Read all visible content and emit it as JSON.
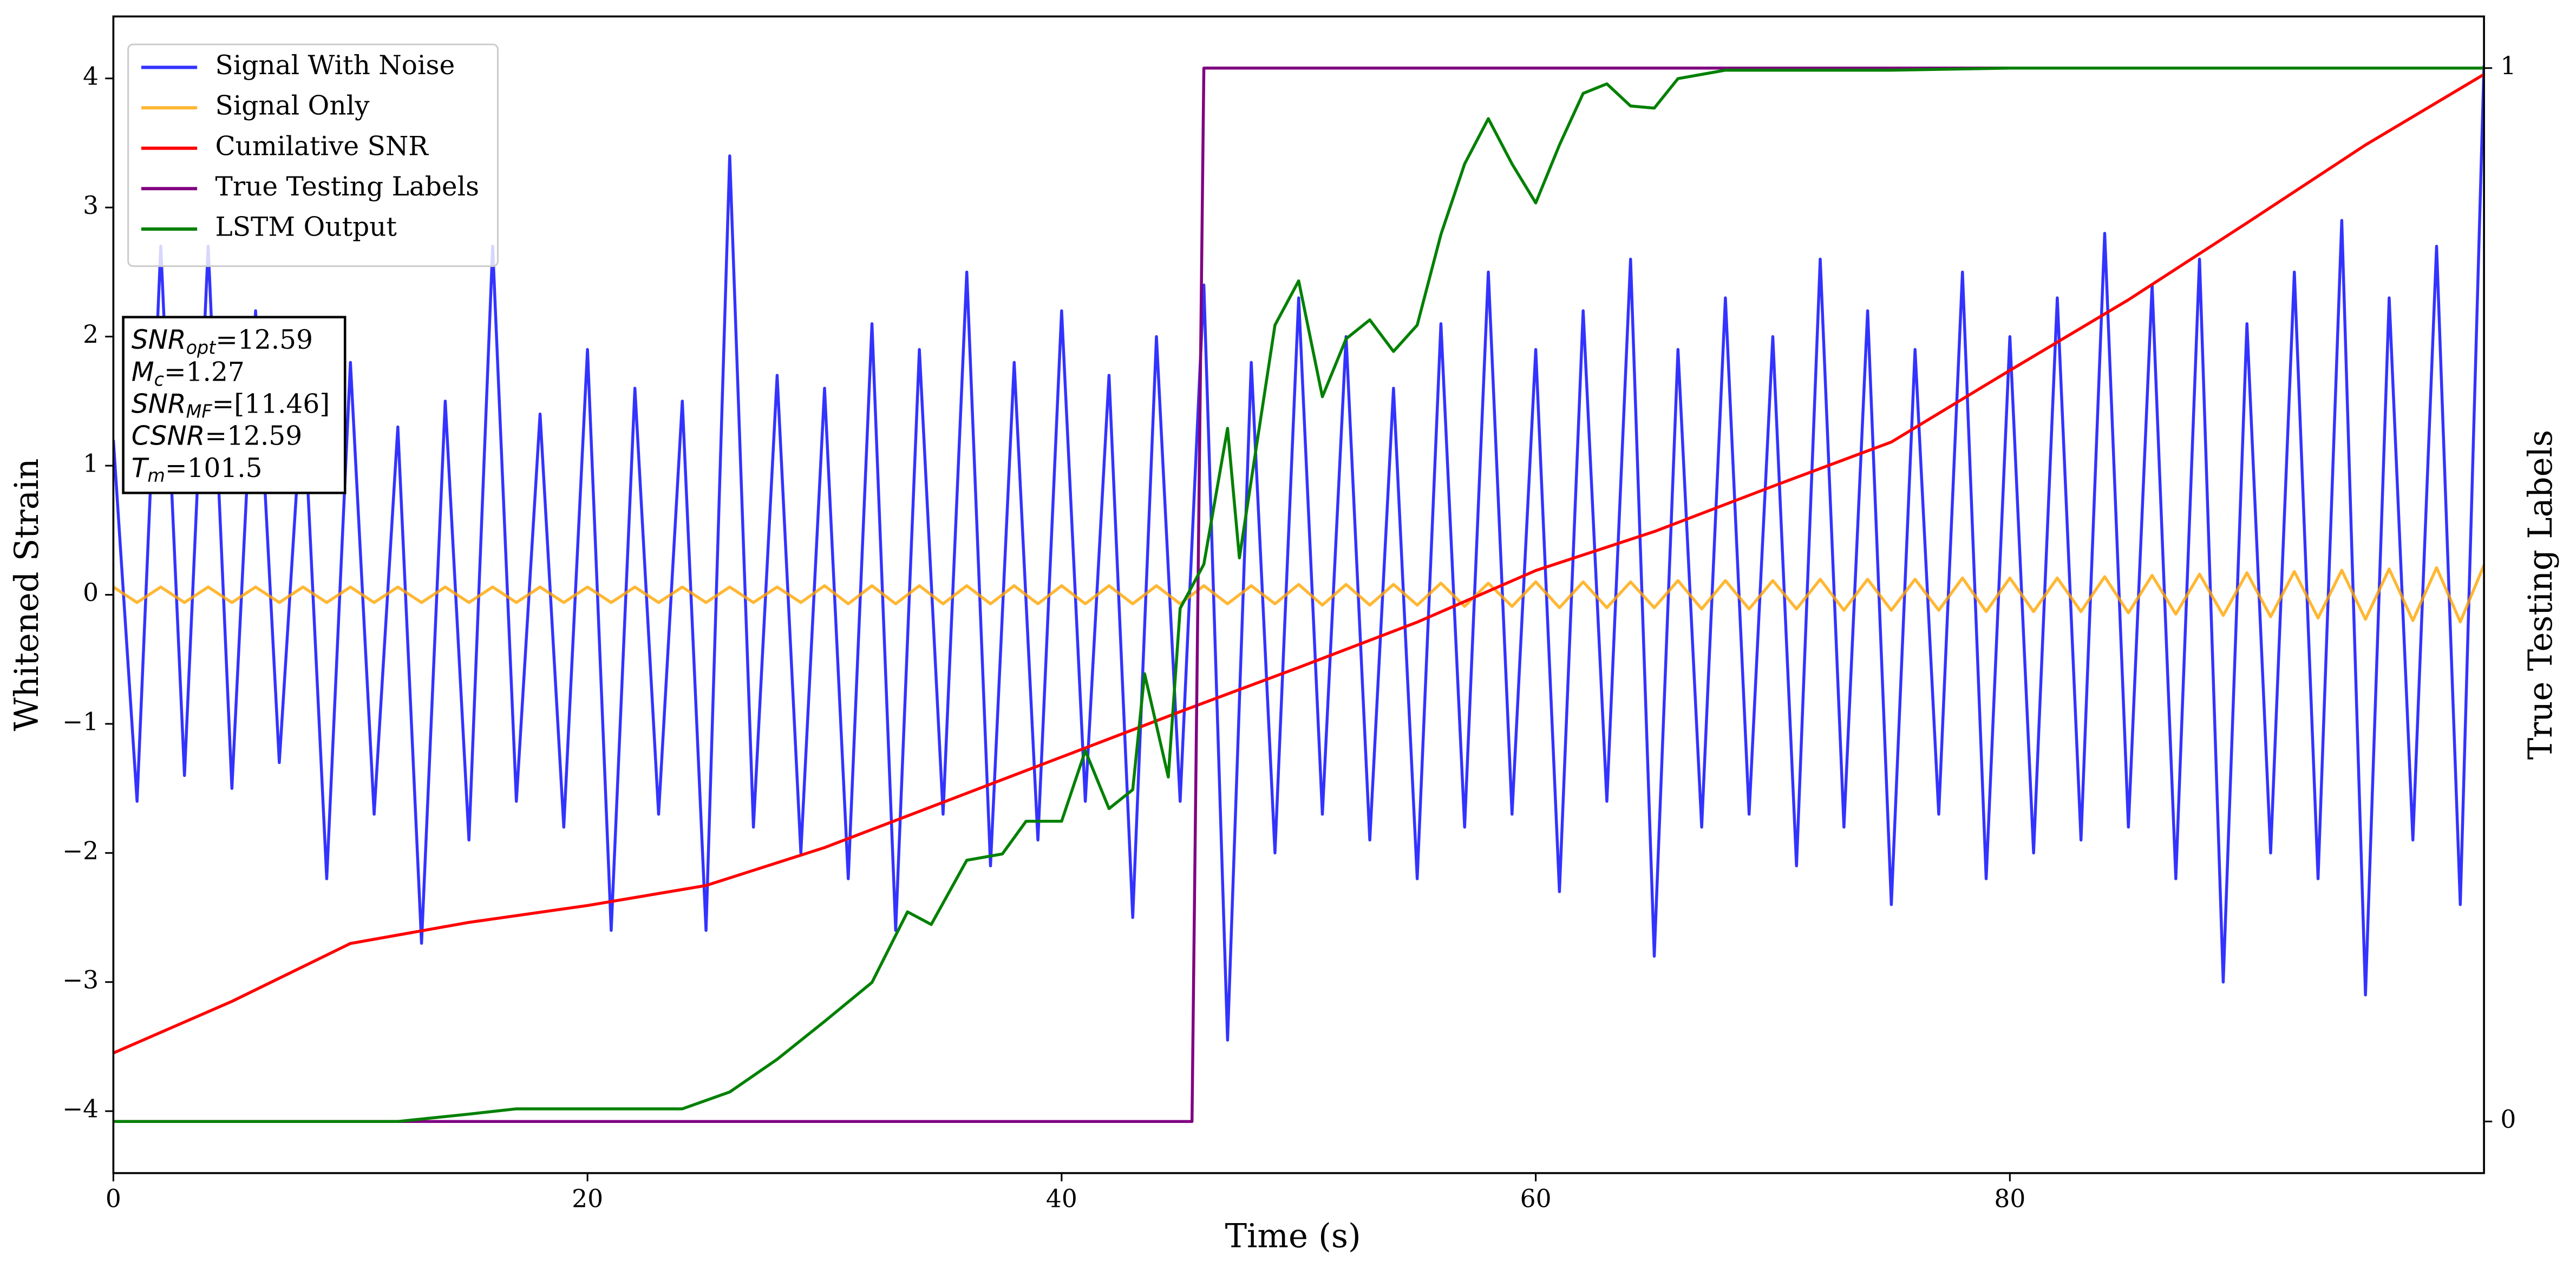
{
  "chart_data": {
    "type": "line",
    "xlabel": "Time (s)",
    "ylabel": "Whitened Strain",
    "y2label": "True Testing Labels",
    "xlim": [
      0,
      100
    ],
    "ylim": [
      -4.48,
      4.48
    ],
    "y2lim": [
      -0.049,
      1.049
    ],
    "xticks": [
      0,
      20,
      40,
      60,
      80
    ],
    "yticks": [
      {
        "value": -4,
        "label": "−4"
      },
      {
        "value": -3,
        "label": "−3"
      },
      {
        "value": -2,
        "label": "−2"
      },
      {
        "value": -1,
        "label": "−1"
      },
      0,
      1,
      2,
      3,
      4
    ],
    "y2ticks": [
      0,
      1
    ],
    "legend": "upper left",
    "alpha": 0.8,
    "x": [
      0,
      1,
      2,
      3,
      4,
      5,
      6,
      7,
      8,
      9,
      10,
      11,
      12,
      13,
      14,
      15,
      16,
      17,
      18,
      19,
      20,
      21,
      22,
      23,
      24,
      25,
      26,
      27,
      28,
      29,
      30,
      31,
      32,
      33,
      34,
      35,
      36,
      37,
      38,
      39,
      40,
      41,
      42,
      43,
      44,
      45,
      46,
      47,
      48,
      49,
      50,
      51,
      52,
      53,
      54,
      55,
      56,
      57,
      58,
      59,
      60,
      61,
      62,
      63,
      64,
      65,
      66,
      67,
      68,
      69,
      70,
      71,
      72,
      73,
      74,
      75,
      76,
      77,
      78,
      79,
      80,
      81,
      82,
      83,
      84,
      85,
      86,
      87,
      88,
      89,
      90,
      91,
      92,
      93,
      94,
      95,
      96,
      97,
      98,
      99,
      100
    ],
    "series": [
      {
        "name": "Signal With Noise",
        "color": "#0000ff",
        "values": [
          1.2,
          -1.6,
          2.7,
          -1.4,
          2.7,
          -1.5,
          2.2,
          -1.3,
          1.6,
          -2.2,
          1.8,
          -1.7,
          1.3,
          -2.7,
          1.5,
          -1.9,
          2.7,
          -1.6,
          1.4,
          -1.8,
          1.9,
          -2.6,
          1.6,
          -1.7,
          1.5,
          -2.6,
          3.4,
          -1.8,
          1.7,
          -2.0,
          1.6,
          -2.2,
          2.1,
          -2.6,
          1.9,
          -1.7,
          2.5,
          -2.1,
          1.8,
          -1.9,
          2.2,
          -1.6,
          1.7,
          -2.5,
          2.0,
          -1.6,
          2.4,
          -3.45,
          1.8,
          -2.0,
          2.3,
          -1.7,
          2.0,
          -1.9,
          1.6,
          -2.2,
          2.1,
          -1.8,
          2.5,
          -1.7,
          1.9,
          -2.3,
          2.2,
          -1.6,
          2.6,
          -2.8,
          1.9,
          -1.8,
          2.3,
          -1.7,
          2.0,
          -2.1,
          2.6,
          -1.8,
          2.2,
          -2.4,
          1.9,
          -1.7,
          2.5,
          -2.2,
          2.0,
          -2.0,
          2.3,
          -1.9,
          2.8,
          -1.8,
          2.4,
          -2.2,
          2.6,
          -3.0,
          2.1,
          -2.0,
          2.5,
          -2.2,
          2.9,
          -3.1,
          2.3,
          -1.9,
          2.7,
          -2.4,
          4.1
        ]
      },
      {
        "name": "Signal Only",
        "color": "#ffa500",
        "values": [
          0.06,
          -0.06,
          0.06,
          -0.06,
          0.06,
          -0.06,
          0.06,
          -0.06,
          0.06,
          -0.06,
          0.06,
          -0.06,
          0.06,
          -0.06,
          0.06,
          -0.06,
          0.06,
          -0.06,
          0.06,
          -0.06,
          0.06,
          -0.06,
          0.06,
          -0.06,
          0.06,
          -0.06,
          0.06,
          -0.06,
          0.06,
          -0.06,
          0.07,
          -0.07,
          0.07,
          -0.07,
          0.07,
          -0.07,
          0.07,
          -0.07,
          0.07,
          -0.07,
          0.07,
          -0.07,
          0.07,
          -0.07,
          0.07,
          -0.07,
          0.07,
          -0.07,
          0.07,
          -0.07,
          0.08,
          -0.08,
          0.08,
          -0.08,
          0.08,
          -0.08,
          0.09,
          -0.09,
          0.09,
          -0.09,
          0.1,
          -0.1,
          0.1,
          -0.1,
          0.1,
          -0.1,
          0.11,
          -0.11,
          0.11,
          -0.11,
          0.11,
          -0.11,
          0.12,
          -0.12,
          0.12,
          -0.12,
          0.12,
          -0.12,
          0.13,
          -0.13,
          0.13,
          -0.13,
          0.13,
          -0.13,
          0.14,
          -0.14,
          0.15,
          -0.15,
          0.16,
          -0.16,
          0.17,
          -0.17,
          0.18,
          -0.18,
          0.19,
          -0.19,
          0.2,
          -0.2,
          0.21,
          -0.21,
          0.23
        ]
      },
      {
        "name": "Cumilative SNR",
        "color": "#ff0000",
        "axis": "y2",
        "x": [
          0,
          5,
          10,
          15,
          20,
          25,
          30,
          35,
          40,
          45,
          50,
          55,
          60,
          65,
          70,
          75,
          80,
          85,
          90,
          95,
          100
        ],
        "values": [
          0.065,
          0.114,
          0.169,
          0.189,
          0.205,
          0.224,
          0.26,
          0.303,
          0.346,
          0.389,
          0.431,
          0.474,
          0.523,
          0.56,
          0.603,
          0.645,
          0.713,
          0.78,
          0.853,
          0.927,
          0.994
        ]
      },
      {
        "name": "True Testing Labels",
        "color": "#800080",
        "axis": "y2",
        "x": [
          0,
          45.5,
          46,
          100
        ],
        "values": [
          0,
          0,
          1,
          1
        ]
      },
      {
        "name": "LSTM Output",
        "color": "#008000",
        "axis": "y2",
        "x": [
          0,
          12,
          15,
          17,
          20,
          24,
          26,
          28,
          30,
          32,
          33.5,
          34.5,
          36,
          37.5,
          38.5,
          40,
          41,
          42,
          43,
          43.5,
          44.5,
          45,
          46,
          47,
          47.5,
          49,
          50,
          51,
          52,
          53,
          54,
          55,
          56,
          57,
          58,
          59,
          60,
          61,
          62,
          63,
          64,
          65,
          66,
          68,
          75,
          80,
          100
        ],
        "values": [
          0,
          0,
          0.007,
          0.012,
          0.012,
          0.012,
          0.028,
          0.059,
          0.095,
          0.132,
          0.199,
          0.187,
          0.248,
          0.254,
          0.285,
          0.285,
          0.352,
          0.297,
          0.315,
          0.425,
          0.327,
          0.487,
          0.529,
          0.658,
          0.535,
          0.756,
          0.798,
          0.688,
          0.743,
          0.761,
          0.731,
          0.756,
          0.842,
          0.909,
          0.952,
          0.909,
          0.872,
          0.927,
          0.976,
          0.985,
          0.964,
          0.962,
          0.99,
          0.998,
          0.998,
          1,
          1
        ]
      }
    ],
    "annotation": [
      {
        "main": "SNR",
        "sub": "opt",
        "text": "=12.59"
      },
      {
        "main": "M",
        "sub": "c",
        "text": "=1.27"
      },
      {
        "main": "SNR",
        "sub": "MF",
        "text": "=[11.46]"
      },
      {
        "main": "CSNR",
        "sub": null,
        "text": "=12.59"
      },
      {
        "main": "T",
        "sub": "m",
        "text": "=101.5"
      }
    ]
  }
}
